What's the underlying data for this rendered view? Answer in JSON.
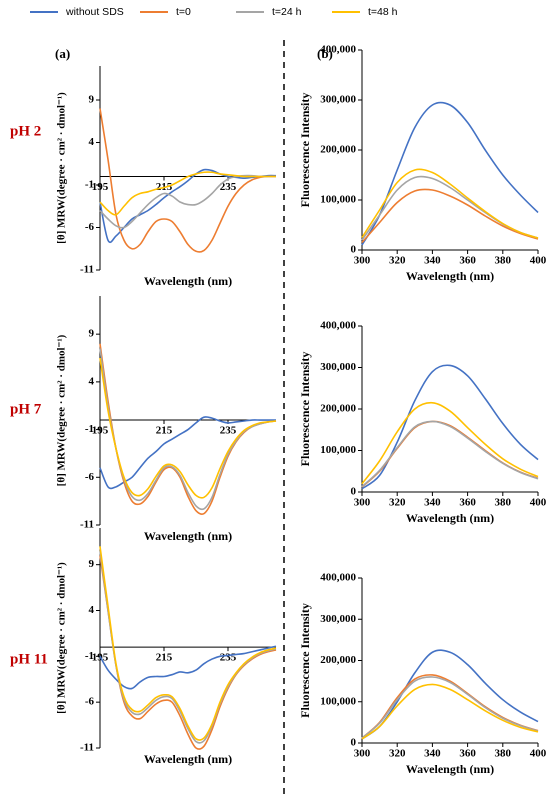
{
  "legend": [
    {
      "name": "without SDS",
      "color": "#4472c4"
    },
    {
      "name": "t=0",
      "color": "#ed7d31"
    },
    {
      "name": "t=24 h",
      "color": "#a5a5a5"
    },
    {
      "name": "t=48 h",
      "color": "#ffc000"
    }
  ],
  "panel_labels": [
    "(a)",
    "(b)"
  ],
  "row_labels": [
    "pH 2",
    "pH 7",
    "pH 11"
  ],
  "chart_data": [
    {
      "type": "line",
      "x_label": "Wavelength (nm)",
      "y_label": "[θ] MRW(degree · cm² · dmol⁻¹)",
      "x": [
        195,
        197.5,
        200,
        202.5,
        205,
        207.5,
        210,
        212.5,
        215,
        217.5,
        220,
        222.5,
        225,
        227.5,
        230,
        232.5,
        235,
        237.5,
        240,
        242.5,
        245,
        247.5,
        250
      ],
      "xlim": [
        195,
        250
      ],
      "xticks": [
        195,
        215,
        235
      ],
      "ylim": [
        -11,
        13
      ],
      "yticks": [
        -11,
        -6,
        -1,
        4,
        9
      ],
      "series": [
        {
          "values": [
            -3,
            -7.5,
            -7,
            -6,
            -5,
            -4.5,
            -4,
            -3.3,
            -2.5,
            -1.8,
            -1.2,
            -0.5,
            0.3,
            0.8,
            0.7,
            0.3,
            0,
            -0.1,
            -0.2,
            -0.1,
            0,
            0.1,
            0.1
          ]
        },
        {
          "values": [
            8,
            2,
            -4.5,
            -7.5,
            -8.5,
            -8,
            -6.5,
            -5.3,
            -5,
            -5.3,
            -6.5,
            -8,
            -8.8,
            -8.7,
            -7.5,
            -5.5,
            -3.5,
            -2,
            -1,
            -0.4,
            -0.1,
            0,
            0
          ]
        },
        {
          "values": [
            -4,
            -5,
            -5.8,
            -6,
            -5.3,
            -4.3,
            -3.3,
            -2.5,
            -2,
            -2.3,
            -3,
            -3.3,
            -3.3,
            -2.8,
            -2,
            -1,
            -0.3,
            0,
            0.1,
            0.1,
            0,
            0,
            0
          ]
        },
        {
          "values": [
            -3,
            -4,
            -4.5,
            -3.5,
            -2.5,
            -2,
            -1.8,
            -1.5,
            -1.3,
            -1,
            -0.5,
            0,
            0.3,
            0.5,
            0.5,
            0.3,
            0.2,
            0.1,
            0,
            0,
            0,
            0,
            0
          ]
        }
      ]
    },
    {
      "type": "line",
      "x_label": "Wavelength (nm)",
      "y_label": "Fluorescence Intensity",
      "x": [
        300,
        310,
        320,
        330,
        340,
        350,
        360,
        370,
        380,
        390,
        400
      ],
      "xlim": [
        300,
        400
      ],
      "xticks": [
        300,
        320,
        340,
        360,
        380,
        400
      ],
      "ylim": [
        0,
        400000
      ],
      "yticks": [
        0,
        {
          "value": 100000,
          "label": "100,000"
        },
        {
          "value": 200000,
          "label": "200,000"
        },
        {
          "value": 300000,
          "label": "300,000"
        },
        {
          "value": 400000,
          "label": "400,000"
        }
      ],
      "series": [
        {
          "values": [
            10000,
            70000,
            160000,
            245000,
            290000,
            290000,
            255000,
            200000,
            150000,
            110000,
            75000
          ]
        },
        {
          "values": [
            15000,
            55000,
            95000,
            118000,
            120000,
            108000,
            90000,
            68000,
            48000,
            33000,
            22000
          ]
        },
        {
          "values": [
            20000,
            70000,
            120000,
            145000,
            143000,
            125000,
            100000,
            75000,
            52000,
            35000,
            24000
          ]
        },
        {
          "values": [
            25000,
            80000,
            135000,
            160000,
            155000,
            132000,
            104000,
            77000,
            53000,
            35000,
            24000
          ]
        }
      ]
    },
    {
      "type": "line",
      "x_label": "Wavelength (nm)",
      "y_label": "[θ] MRW(degree · cm² · dmol⁻¹)",
      "x": [
        195,
        197.5,
        200,
        202.5,
        205,
        207.5,
        210,
        212.5,
        215,
        217.5,
        220,
        222.5,
        225,
        227.5,
        230,
        232.5,
        235,
        237.5,
        240,
        242.5,
        245,
        247.5,
        250
      ],
      "xlim": [
        195,
        250
      ],
      "xticks": [
        195,
        215,
        235
      ],
      "ylim": [
        -11,
        13
      ],
      "yticks": [
        -11,
        -6,
        -1,
        4,
        9
      ],
      "series": [
        {
          "values": [
            -5,
            -7,
            -7,
            -6.5,
            -6,
            -5,
            -4,
            -3.3,
            -2.5,
            -2,
            -1.5,
            -1,
            -0.3,
            0.3,
            0.2,
            -0.1,
            -0.3,
            -0.2,
            -0.1,
            0,
            0,
            0,
            0
          ]
        },
        {
          "values": [
            8,
            2,
            -3,
            -6.5,
            -8.5,
            -8.8,
            -8,
            -6.5,
            -5.2,
            -5,
            -6,
            -8,
            -9.5,
            -9.8,
            -8.5,
            -6,
            -3.8,
            -2.3,
            -1.3,
            -0.7,
            -0.4,
            -0.2,
            -0.1
          ]
        },
        {
          "values": [
            7.5,
            1.5,
            -3,
            -6.2,
            -8,
            -8.4,
            -7.7,
            -6.3,
            -5,
            -4.9,
            -5.8,
            -7.6,
            -9,
            -9.3,
            -8.1,
            -5.7,
            -3.6,
            -2.2,
            -1.2,
            -0.7,
            -0.4,
            -0.2,
            -0.1
          ]
        },
        {
          "values": [
            6.5,
            1,
            -3,
            -6,
            -7.6,
            -7.9,
            -7.2,
            -5.9,
            -4.8,
            -4.7,
            -5.4,
            -6.8,
            -7.9,
            -8.1,
            -7.1,
            -5.1,
            -3.3,
            -2,
            -1.1,
            -0.6,
            -0.3,
            -0.2,
            -0.1
          ]
        }
      ]
    },
    {
      "type": "line",
      "x_label": "Wavelength (nm)",
      "y_label": "Fluorescence Intensity",
      "x": [
        300,
        310,
        320,
        330,
        340,
        350,
        360,
        370,
        380,
        390,
        400
      ],
      "xlim": [
        300,
        400
      ],
      "xticks": [
        300,
        320,
        340,
        360,
        380,
        400
      ],
      "ylim": [
        0,
        400000
      ],
      "yticks": [
        0,
        {
          "value": 100000,
          "label": "100,000"
        },
        {
          "value": 200000,
          "label": "200,000"
        },
        {
          "value": 300000,
          "label": "300,000"
        },
        {
          "value": 400000,
          "label": "400,000"
        }
      ],
      "series": [
        {
          "values": [
            8000,
            40000,
            120000,
            220000,
            290000,
            305000,
            280000,
            225000,
            165000,
            115000,
            78000
          ]
        },
        {
          "values": [
            12000,
            50000,
            105000,
            155000,
            170000,
            160000,
            132000,
            100000,
            70000,
            48000,
            33000
          ]
        },
        {
          "values": [
            13000,
            52000,
            107000,
            157000,
            170000,
            158000,
            130000,
            98000,
            69000,
            47000,
            32000
          ]
        },
        {
          "values": [
            20000,
            75000,
            145000,
            200000,
            215000,
            195000,
            155000,
            115000,
            80000,
            55000,
            37000
          ]
        }
      ]
    },
    {
      "type": "line",
      "x_label": "Wavelength (nm)",
      "y_label": "[θ] MRW(degree · cm² · dmol⁻¹)",
      "x": [
        195,
        197.5,
        200,
        202.5,
        205,
        207.5,
        210,
        212.5,
        215,
        217.5,
        220,
        222.5,
        225,
        227.5,
        230,
        232.5,
        235,
        237.5,
        240,
        242.5,
        245,
        247.5,
        250
      ],
      "xlim": [
        195,
        250
      ],
      "xticks": [
        195,
        215,
        235
      ],
      "ylim": [
        -11,
        13
      ],
      "yticks": [
        -11,
        -6,
        -1,
        4,
        9
      ],
      "series": [
        {
          "values": [
            -1,
            -2.5,
            -3.5,
            -4.3,
            -4.5,
            -3.8,
            -3.3,
            -3.2,
            -3.2,
            -3,
            -2.7,
            -2.8,
            -2.5,
            -1.8,
            -1.3,
            -1,
            -0.9,
            -0.8,
            -0.7,
            -0.5,
            -0.3,
            -0.1,
            0.1
          ]
        },
        {
          "values": [
            10,
            4,
            -2,
            -6,
            -7.5,
            -7.8,
            -7,
            -6.2,
            -5.8,
            -6,
            -7.5,
            -9.5,
            -11,
            -10.8,
            -9,
            -6.5,
            -4.5,
            -3,
            -2,
            -1.3,
            -0.8,
            -0.5,
            -0.3
          ]
        },
        {
          "values": [
            10.5,
            4,
            -2,
            -5.7,
            -7.1,
            -7.3,
            -6.6,
            -5.8,
            -5.4,
            -5.6,
            -7,
            -8.9,
            -10.3,
            -10.2,
            -8.6,
            -6.2,
            -4.3,
            -2.9,
            -1.9,
            -1.2,
            -0.7,
            -0.4,
            -0.2
          ]
        },
        {
          "values": [
            11,
            4.5,
            -1.8,
            -5.4,
            -6.8,
            -7,
            -6.3,
            -5.5,
            -5.2,
            -5.4,
            -6.7,
            -8.6,
            -10,
            -9.9,
            -8.4,
            -6,
            -4.1,
            -2.8,
            -1.8,
            -1.1,
            -0.6,
            -0.3,
            -0.1
          ]
        }
      ]
    },
    {
      "type": "line",
      "x_label": "Wavelength (nm)",
      "y_label": "Fluorescence Intensity",
      "x": [
        300,
        310,
        320,
        330,
        340,
        350,
        360,
        370,
        380,
        390,
        400
      ],
      "xlim": [
        300,
        400
      ],
      "xticks": [
        300,
        320,
        340,
        360,
        380,
        400
      ],
      "ylim": [
        0,
        400000
      ],
      "yticks": [
        0,
        {
          "value": 100000,
          "label": "100,000"
        },
        {
          "value": 200000,
          "label": "200,000"
        },
        {
          "value": 300000,
          "label": "300,000"
        },
        {
          "value": 400000,
          "label": "400,000"
        }
      ],
      "series": [
        {
          "values": [
            10000,
            40000,
            100000,
            170000,
            220000,
            220000,
            190000,
            145000,
            105000,
            75000,
            52000
          ]
        },
        {
          "values": [
            12000,
            50000,
            110000,
            155000,
            165000,
            150000,
            120000,
            88000,
            62000,
            43000,
            30000
          ]
        },
        {
          "values": [
            12000,
            48000,
            105000,
            150000,
            160000,
            147000,
            118000,
            86000,
            60000,
            42000,
            29000
          ]
        },
        {
          "values": [
            10000,
            40000,
            90000,
            130000,
            142000,
            130000,
            105000,
            78000,
            55000,
            38000,
            27000
          ]
        }
      ]
    }
  ]
}
